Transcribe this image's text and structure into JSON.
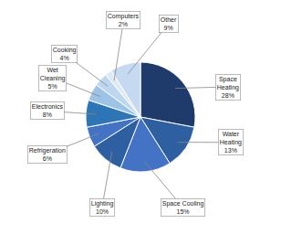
{
  "chart_data": {
    "type": "pie",
    "categories": [
      "Space\nHeating",
      "Water\nHeating",
      "Space Cooling",
      "Lighting",
      "Refrigeration",
      "Electronics",
      "Wet\nCleaning",
      "Cooking",
      "Computers",
      "Other"
    ],
    "values": [
      28,
      13,
      15,
      10,
      6,
      8,
      5,
      4,
      2,
      9
    ],
    "value_labels": [
      "28%",
      "13%",
      "15%",
      "10%",
      "6%",
      "8%",
      "5%",
      "4%",
      "2%",
      "9%"
    ],
    "data_labels": true,
    "colors": [
      "#1F3B6B",
      "#2E5FA0",
      "#4472C4",
      "#2E5FA0",
      "#4472C4",
      "#2E75B6",
      "#9DC3E6",
      "#BDD7EE",
      "#DEEAF1",
      "#C5D9F1"
    ]
  }
}
